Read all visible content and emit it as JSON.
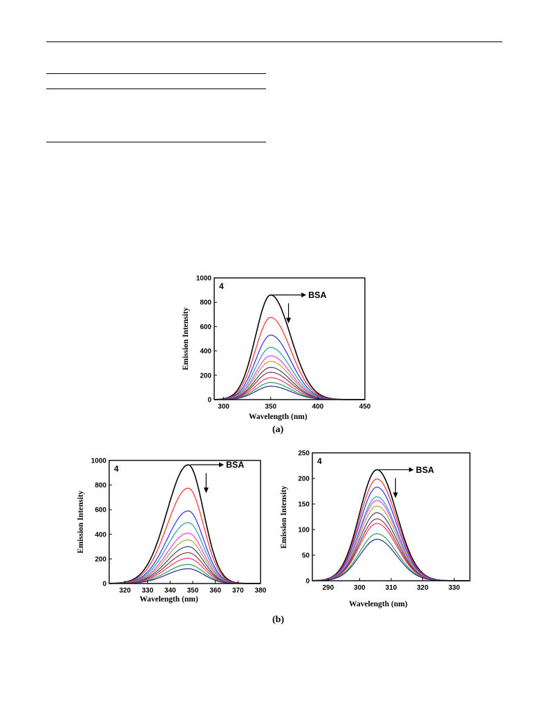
{
  "captions": {
    "a": "(a)",
    "b": "(b)"
  },
  "colors": {
    "series": [
      "#000000",
      "#ff2a2a",
      "#2a2aff",
      "#239e9e",
      "#ff33ff",
      "#a8a832",
      "#334477",
      "#993333",
      "#ee3366",
      "#2a9e4a",
      "#1a2a99"
    ]
  },
  "chart_data": [
    {
      "type": "line",
      "panel_label": "4",
      "annotation": "BSA",
      "xlabel": "Wavelength (nm)",
      "ylabel": "Emission  Intensity",
      "xlim": [
        290,
        450
      ],
      "ylim": [
        0,
        1000
      ],
      "xticks": [
        300,
        350,
        400,
        450
      ],
      "yticks": [
        0,
        200,
        400,
        600,
        800,
        1000
      ],
      "grid": false,
      "legend": "none",
      "series": [
        {
          "peak_x": 350,
          "peak_y": 860
        },
        {
          "peak_x": 350,
          "peak_y": 675
        },
        {
          "peak_x": 350,
          "peak_y": 530
        },
        {
          "peak_x": 350,
          "peak_y": 430
        },
        {
          "peak_x": 350,
          "peak_y": 360
        },
        {
          "peak_x": 350,
          "peak_y": 315
        },
        {
          "peak_x": 350,
          "peak_y": 265
        },
        {
          "peak_x": 350,
          "peak_y": 225
        },
        {
          "peak_x": 350,
          "peak_y": 180
        },
        {
          "peak_x": 350,
          "peak_y": 140
        },
        {
          "peak_x": 350,
          "peak_y": 110
        }
      ]
    },
    {
      "type": "line",
      "panel_label": "4",
      "annotation": "BSA",
      "xlabel": "Wavelength (nm)",
      "ylabel": "Emission  Intensity",
      "xlim": [
        313,
        380
      ],
      "ylim": [
        0,
        1000
      ],
      "xticks": [
        320,
        330,
        340,
        350,
        360,
        370,
        380
      ],
      "yticks": [
        0,
        200,
        400,
        600,
        800,
        1000
      ],
      "grid": false,
      "legend": "none",
      "series": [
        {
          "peak_x": 348,
          "peak_y": 965
        },
        {
          "peak_x": 348,
          "peak_y": 775
        },
        {
          "peak_x": 348,
          "peak_y": 590
        },
        {
          "peak_x": 348,
          "peak_y": 495
        },
        {
          "peak_x": 348,
          "peak_y": 410
        },
        {
          "peak_x": 348,
          "peak_y": 355
        },
        {
          "peak_x": 348,
          "peak_y": 300
        },
        {
          "peak_x": 348,
          "peak_y": 250
        },
        {
          "peak_x": 348,
          "peak_y": 205
        },
        {
          "peak_x": 348,
          "peak_y": 155
        },
        {
          "peak_x": 348,
          "peak_y": 120
        }
      ]
    },
    {
      "type": "line",
      "panel_label": "4",
      "annotation": "BSA",
      "xlabel": "Wavelength (nm)",
      "ylabel": "Emission  Intensity",
      "xlim": [
        285,
        335
      ],
      "ylim": [
        0,
        250
      ],
      "xticks": [
        290,
        300,
        310,
        320,
        330
      ],
      "yticks": [
        0,
        50,
        100,
        150,
        200,
        250
      ],
      "grid": false,
      "legend": "none",
      "series": [
        {
          "peak_x": 305.5,
          "peak_y": 217
        },
        {
          "peak_x": 305.5,
          "peak_y": 199
        },
        {
          "peak_x": 305.5,
          "peak_y": 183
        },
        {
          "peak_x": 305.5,
          "peak_y": 164
        },
        {
          "peak_x": 305.5,
          "peak_y": 157
        },
        {
          "peak_x": 305.5,
          "peak_y": 146
        },
        {
          "peak_x": 305.5,
          "peak_y": 133
        },
        {
          "peak_x": 305.5,
          "peak_y": 121
        },
        {
          "peak_x": 305.5,
          "peak_y": 112
        },
        {
          "peak_x": 305.5,
          "peak_y": 92
        },
        {
          "peak_x": 305.5,
          "peak_y": 81
        }
      ]
    }
  ]
}
